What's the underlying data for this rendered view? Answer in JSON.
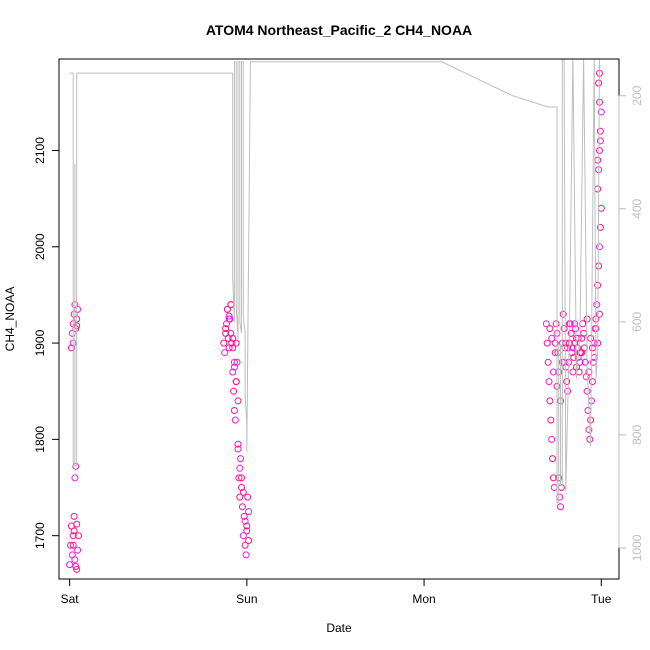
{
  "chart_data": {
    "type": "scatter",
    "title": "ATOM4 Northeast_Pacific_2 CH4_NOAA",
    "xlabel": "Date",
    "ylabel": "CH4_NOAA",
    "x_ticks": [
      {
        "label": "Sat",
        "value": 0
      },
      {
        "label": "Sun",
        "value": 1
      },
      {
        "label": "Mon",
        "value": 2
      },
      {
        "label": "Tue",
        "value": 3
      }
    ],
    "xlim": [
      -0.06,
      3.1
    ],
    "ylim": [
      1655,
      2195
    ],
    "y_ticks": [
      1700,
      1800,
      1900,
      2000,
      2100
    ],
    "y2_label": "",
    "y2_ticks": [
      200,
      400,
      600,
      800,
      1000
    ],
    "y2lim": [
      1055,
      135
    ],
    "grid": false,
    "colors": {
      "points": "#ff1493",
      "points_alt": "#ee1ee6",
      "altitude_line": "#bebebe",
      "axis": "#000000"
    },
    "series": [
      {
        "type": "line",
        "axis": "right",
        "x": [
          0.0,
          0.02,
          0.02,
          0.03,
          0.03,
          0.03,
          0.03,
          0.04,
          0.04,
          0.05,
          0.05,
          0.11,
          0.3,
          0.55,
          0.78,
          0.92,
          0.92,
          0.93,
          0.93,
          0.94,
          0.94,
          0.95,
          0.95,
          0.96,
          0.96,
          0.97,
          0.97,
          0.98,
          0.98,
          0.99,
          0.99,
          1.0,
          1.0,
          1.02,
          1.2,
          1.45,
          1.7,
          1.9,
          2.1,
          2.3,
          2.5,
          2.7,
          2.75,
          2.75,
          2.76,
          2.76,
          2.77,
          2.77,
          2.78,
          2.78,
          2.79,
          2.79,
          2.8,
          2.8,
          2.82,
          2.82,
          2.84,
          2.84,
          2.86,
          2.86,
          2.88,
          2.88,
          2.9,
          2.9,
          2.92,
          2.92,
          2.94,
          2.94,
          2.96,
          2.96,
          2.97,
          2.97,
          2.98,
          2.98,
          2.99,
          2.99,
          3.0,
          3.0
        ],
        "y": [
          160,
          160,
          855,
          855,
          320,
          320,
          855,
          855,
          160,
          160,
          160,
          160,
          160,
          160,
          160,
          160,
          520,
          600,
          140,
          140,
          570,
          630,
          140,
          140,
          600,
          620,
          140,
          140,
          590,
          620,
          730,
          780,
          830,
          140,
          140,
          140,
          140,
          140,
          140,
          170,
          200,
          220,
          220,
          920,
          920,
          640,
          640,
          890,
          890,
          130,
          130,
          130,
          900,
          900,
          620,
          620,
          130,
          130,
          700,
          700,
          620,
          620,
          130,
          130,
          680,
          680,
          820,
          820,
          130,
          130,
          700,
          700,
          650,
          650,
          130,
          130,
          130,
          130
        ]
      },
      {
        "name": "",
        "axis": "left",
        "x": [
          0.0,
          0.005,
          0.01,
          0.015,
          0.02,
          0.025,
          0.03,
          0.035,
          0.04,
          0.045,
          0.05,
          0.01,
          0.015,
          0.02,
          0.025,
          0.03,
          0.035,
          0.04,
          0.045,
          0.02,
          0.025,
          0.03,
          0.035,
          0.04,
          0.02,
          0.04,
          0.87,
          0.875,
          0.88,
          0.885,
          0.89,
          0.895,
          0.9,
          0.905,
          0.91,
          0.915,
          0.92,
          0.925,
          0.93,
          0.935,
          0.94,
          0.945,
          0.95,
          0.955,
          0.96,
          0.965,
          0.97,
          0.975,
          0.98,
          0.985,
          0.99,
          0.995,
          1.0,
          1.005,
          1.01,
          0.88,
          0.89,
          0.9,
          0.91,
          0.92,
          0.93,
          0.94,
          0.95,
          0.96,
          0.97,
          0.98,
          0.99,
          1.0,
          1.01,
          0.9,
          0.91,
          0.92,
          0.93,
          0.94,
          0.95,
          2.69,
          2.695,
          2.7,
          2.705,
          2.71,
          2.715,
          2.72,
          2.725,
          2.73,
          2.735,
          2.74,
          2.745,
          2.75,
          2.755,
          2.76,
          2.765,
          2.77,
          2.775,
          2.78,
          2.785,
          2.79,
          2.795,
          2.8,
          2.805,
          2.81,
          2.815,
          2.82,
          2.825,
          2.83,
          2.835,
          2.84,
          2.845,
          2.85,
          2.855,
          2.86,
          2.865,
          2.87,
          2.875,
          2.88,
          2.885,
          2.89,
          2.895,
          2.9,
          2.905,
          2.91,
          2.915,
          2.92,
          2.925,
          2.93,
          2.935,
          2.94,
          2.945,
          2.95,
          2.955,
          2.96,
          2.965,
          2.97,
          2.975,
          2.98,
          2.985,
          2.99,
          2.995,
          3.0,
          2.72,
          2.74,
          2.76,
          2.78,
          2.8,
          2.82,
          2.84,
          2.86,
          2.88,
          2.9,
          2.92,
          2.94,
          2.96,
          2.98,
          2.71,
          2.73,
          2.75,
          2.77,
          2.79,
          2.81,
          2.83,
          2.85,
          2.87,
          2.89,
          2.91,
          2.93,
          2.95,
          2.97,
          2.99,
          2.98,
          2.985,
          2.99,
          2.995,
          3.0,
          2.985,
          2.99,
          2.995,
          2.98,
          2.99
        ],
        "y": [
          1670,
          1690,
          1710,
          1680,
          1700,
          1720,
          1760,
          1772,
          1665,
          1685,
          1700,
          1895,
          1910,
          1920,
          1930,
          1940,
          1915,
          1925,
          1935,
          1690,
          1705,
          1675,
          1668,
          1712,
          1900,
          1918,
          1900,
          1890,
          1910,
          1920,
          1935,
          1905,
          1895,
          1925,
          1940,
          1900,
          1870,
          1850,
          1830,
          1820,
          1860,
          1880,
          1790,
          1760,
          1740,
          1780,
          1750,
          1730,
          1700,
          1720,
          1690,
          1680,
          1710,
          1740,
          1725,
          1915,
          1935,
          1928,
          1940,
          1905,
          1880,
          1900,
          1795,
          1770,
          1760,
          1745,
          1715,
          1705,
          1695,
          1925,
          1910,
          1895,
          1875,
          1860,
          1840,
          1920,
          1900,
          1880,
          1860,
          1840,
          1820,
          1800,
          1780,
          1760,
          1750,
          1900,
          1920,
          1910,
          1890,
          1760,
          1740,
          1730,
          1750,
          1900,
          1930,
          1915,
          1895,
          1875,
          1860,
          1850,
          1880,
          1900,
          1920,
          1910,
          1890,
          1870,
          1885,
          1900,
          1915,
          1905,
          1895,
          1885,
          1870,
          1880,
          1890,
          1905,
          1920,
          1910,
          1895,
          1880,
          1865,
          1850,
          1830,
          1810,
          1800,
          1820,
          1840,
          1860,
          1880,
          1900,
          1915,
          1925,
          1940,
          1960,
          1980,
          2000,
          2020,
          2040,
          1905,
          1890,
          1870,
          1880,
          1900,
          1920,
          1895,
          1875,
          1890,
          1910,
          1925,
          1905,
          1885,
          1900,
          1915,
          1870,
          1855,
          1840,
          1880,
          1895,
          1910,
          1920,
          1905,
          1890,
          1880,
          1870,
          1895,
          1915,
          1930,
          2060,
          2080,
          2100,
          2120,
          2140,
          2170,
          2150,
          2110,
          2090,
          2180
        ]
      }
    ]
  }
}
